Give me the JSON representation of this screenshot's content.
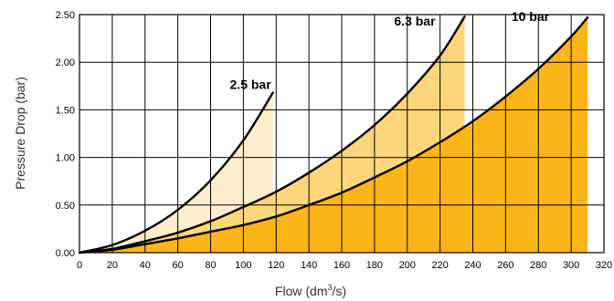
{
  "chart_data": {
    "type": "area",
    "xlabel": "Flow (dm",
    "xlabel_sup": "3",
    "xlabel_suffix": "/s)",
    "ylabel": "Pressure Drop (bar)",
    "xlim": [
      0,
      320
    ],
    "ylim": [
      0,
      2.5
    ],
    "x_ticks": [
      0,
      20,
      40,
      60,
      80,
      100,
      120,
      140,
      160,
      180,
      200,
      220,
      240,
      260,
      280,
      300,
      320
    ],
    "y_ticks": [
      "0.00",
      "0.50",
      "1.00",
      "1.50",
      "2.00",
      "2.50"
    ],
    "grid": true,
    "series": [
      {
        "name": "2.5 bar",
        "color": "#fdedcc",
        "x": [
          0,
          20,
          40,
          60,
          80,
          100,
          118
        ],
        "y": [
          0,
          0.08,
          0.23,
          0.45,
          0.76,
          1.18,
          1.68
        ]
      },
      {
        "name": "6.3 bar",
        "color": "#fdd57b",
        "x": [
          0,
          20,
          40,
          60,
          80,
          100,
          120,
          140,
          160,
          180,
          200,
          220,
          235
        ],
        "y": [
          0,
          0.04,
          0.12,
          0.21,
          0.33,
          0.48,
          0.64,
          0.84,
          1.07,
          1.34,
          1.67,
          2.07,
          2.48
        ]
      },
      {
        "name": "10 bar",
        "color": "#fbb518",
        "x": [
          0,
          20,
          40,
          60,
          80,
          100,
          120,
          140,
          160,
          180,
          200,
          220,
          240,
          260,
          280,
          300,
          310
        ],
        "y": [
          0,
          0.03,
          0.09,
          0.15,
          0.22,
          0.29,
          0.38,
          0.5,
          0.63,
          0.79,
          0.96,
          1.16,
          1.38,
          1.64,
          1.93,
          2.27,
          2.47
        ]
      }
    ]
  }
}
